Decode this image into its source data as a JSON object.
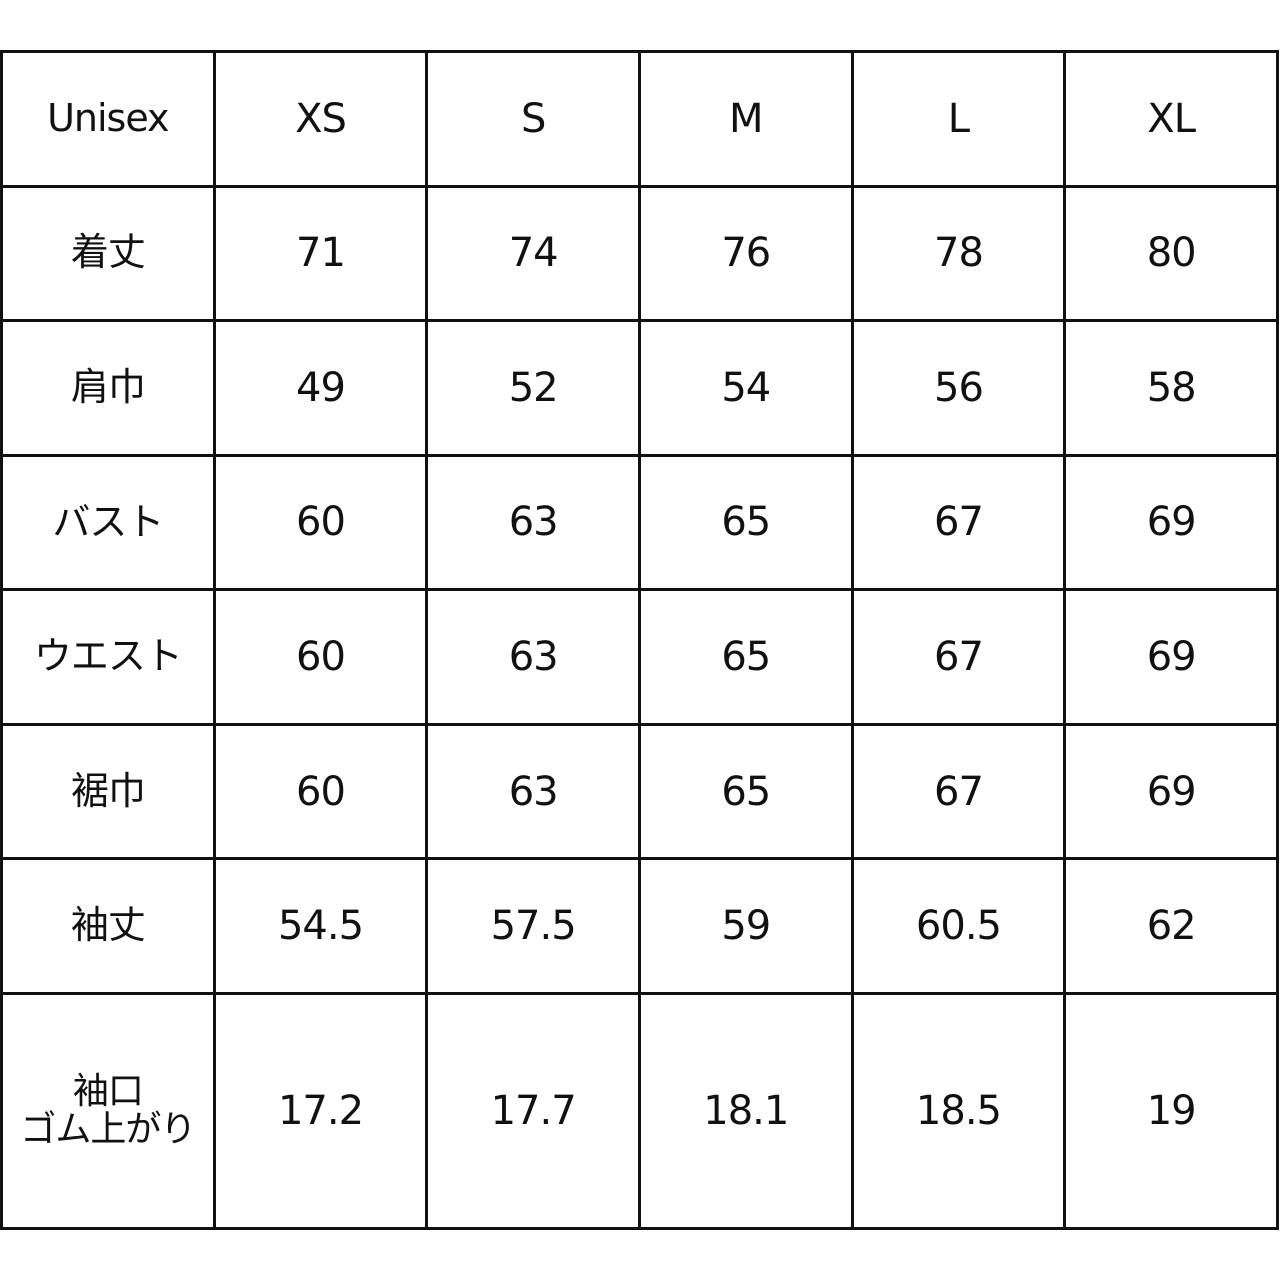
{
  "header": {
    "corner": "Unisex",
    "sizes": [
      "XS",
      "S",
      "M",
      "L",
      "XL"
    ]
  },
  "rows": [
    {
      "label": "着丈",
      "values": [
        "71",
        "74",
        "76",
        "78",
        "80"
      ]
    },
    {
      "label": "肩巾",
      "values": [
        "49",
        "52",
        "54",
        "56",
        "58"
      ]
    },
    {
      "label": "バスト",
      "values": [
        "60",
        "63",
        "65",
        "67",
        "69"
      ]
    },
    {
      "label": "ウエスト",
      "values": [
        "60",
        "63",
        "65",
        "67",
        "69"
      ]
    },
    {
      "label": "裾巾",
      "values": [
        "60",
        "63",
        "65",
        "67",
        "69"
      ]
    },
    {
      "label": "袖丈",
      "values": [
        "54.5",
        "57.5",
        "59",
        "60.5",
        "62"
      ]
    },
    {
      "label": "袖口",
      "label_line2": "ゴム上がり",
      "values": [
        "17.2",
        "17.7",
        "18.1",
        "18.5",
        "19"
      ]
    }
  ]
}
